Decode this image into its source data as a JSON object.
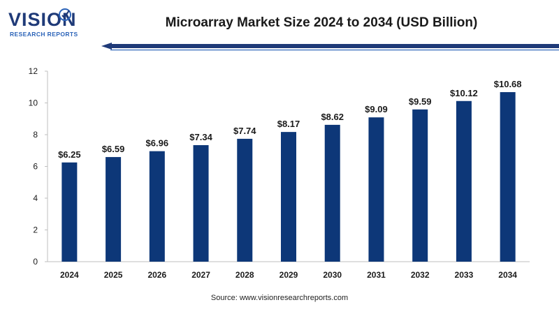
{
  "brand": {
    "name": "VISION",
    "tagline": "RESEARCH REPORTS",
    "primary_color": "#1f3a78",
    "accent_color": "#2b63b8"
  },
  "source_text": "Source: www.visionresearchreports.com",
  "chart_data": {
    "type": "bar",
    "title": "Microarray Market Size 2024 to 2034 (USD Billion)",
    "xlabel": "",
    "ylabel": "",
    "categories": [
      "2024",
      "2025",
      "2026",
      "2027",
      "2028",
      "2029",
      "2030",
      "2031",
      "2032",
      "2033",
      "2034"
    ],
    "values": [
      6.25,
      6.59,
      6.96,
      7.34,
      7.74,
      8.17,
      8.62,
      9.09,
      9.59,
      10.12,
      10.68
    ],
    "data_labels": [
      "$6.25",
      "$6.59",
      "$6.96",
      "$7.34",
      "$7.74",
      "$8.17",
      "$8.62",
      "$9.09",
      "$9.59",
      "$10.12",
      "$10.68"
    ],
    "ylim": [
      0,
      12
    ],
    "yticks": [
      0,
      2,
      4,
      6,
      8,
      10,
      12
    ],
    "grid": false,
    "bar_color": "#0d3778"
  }
}
